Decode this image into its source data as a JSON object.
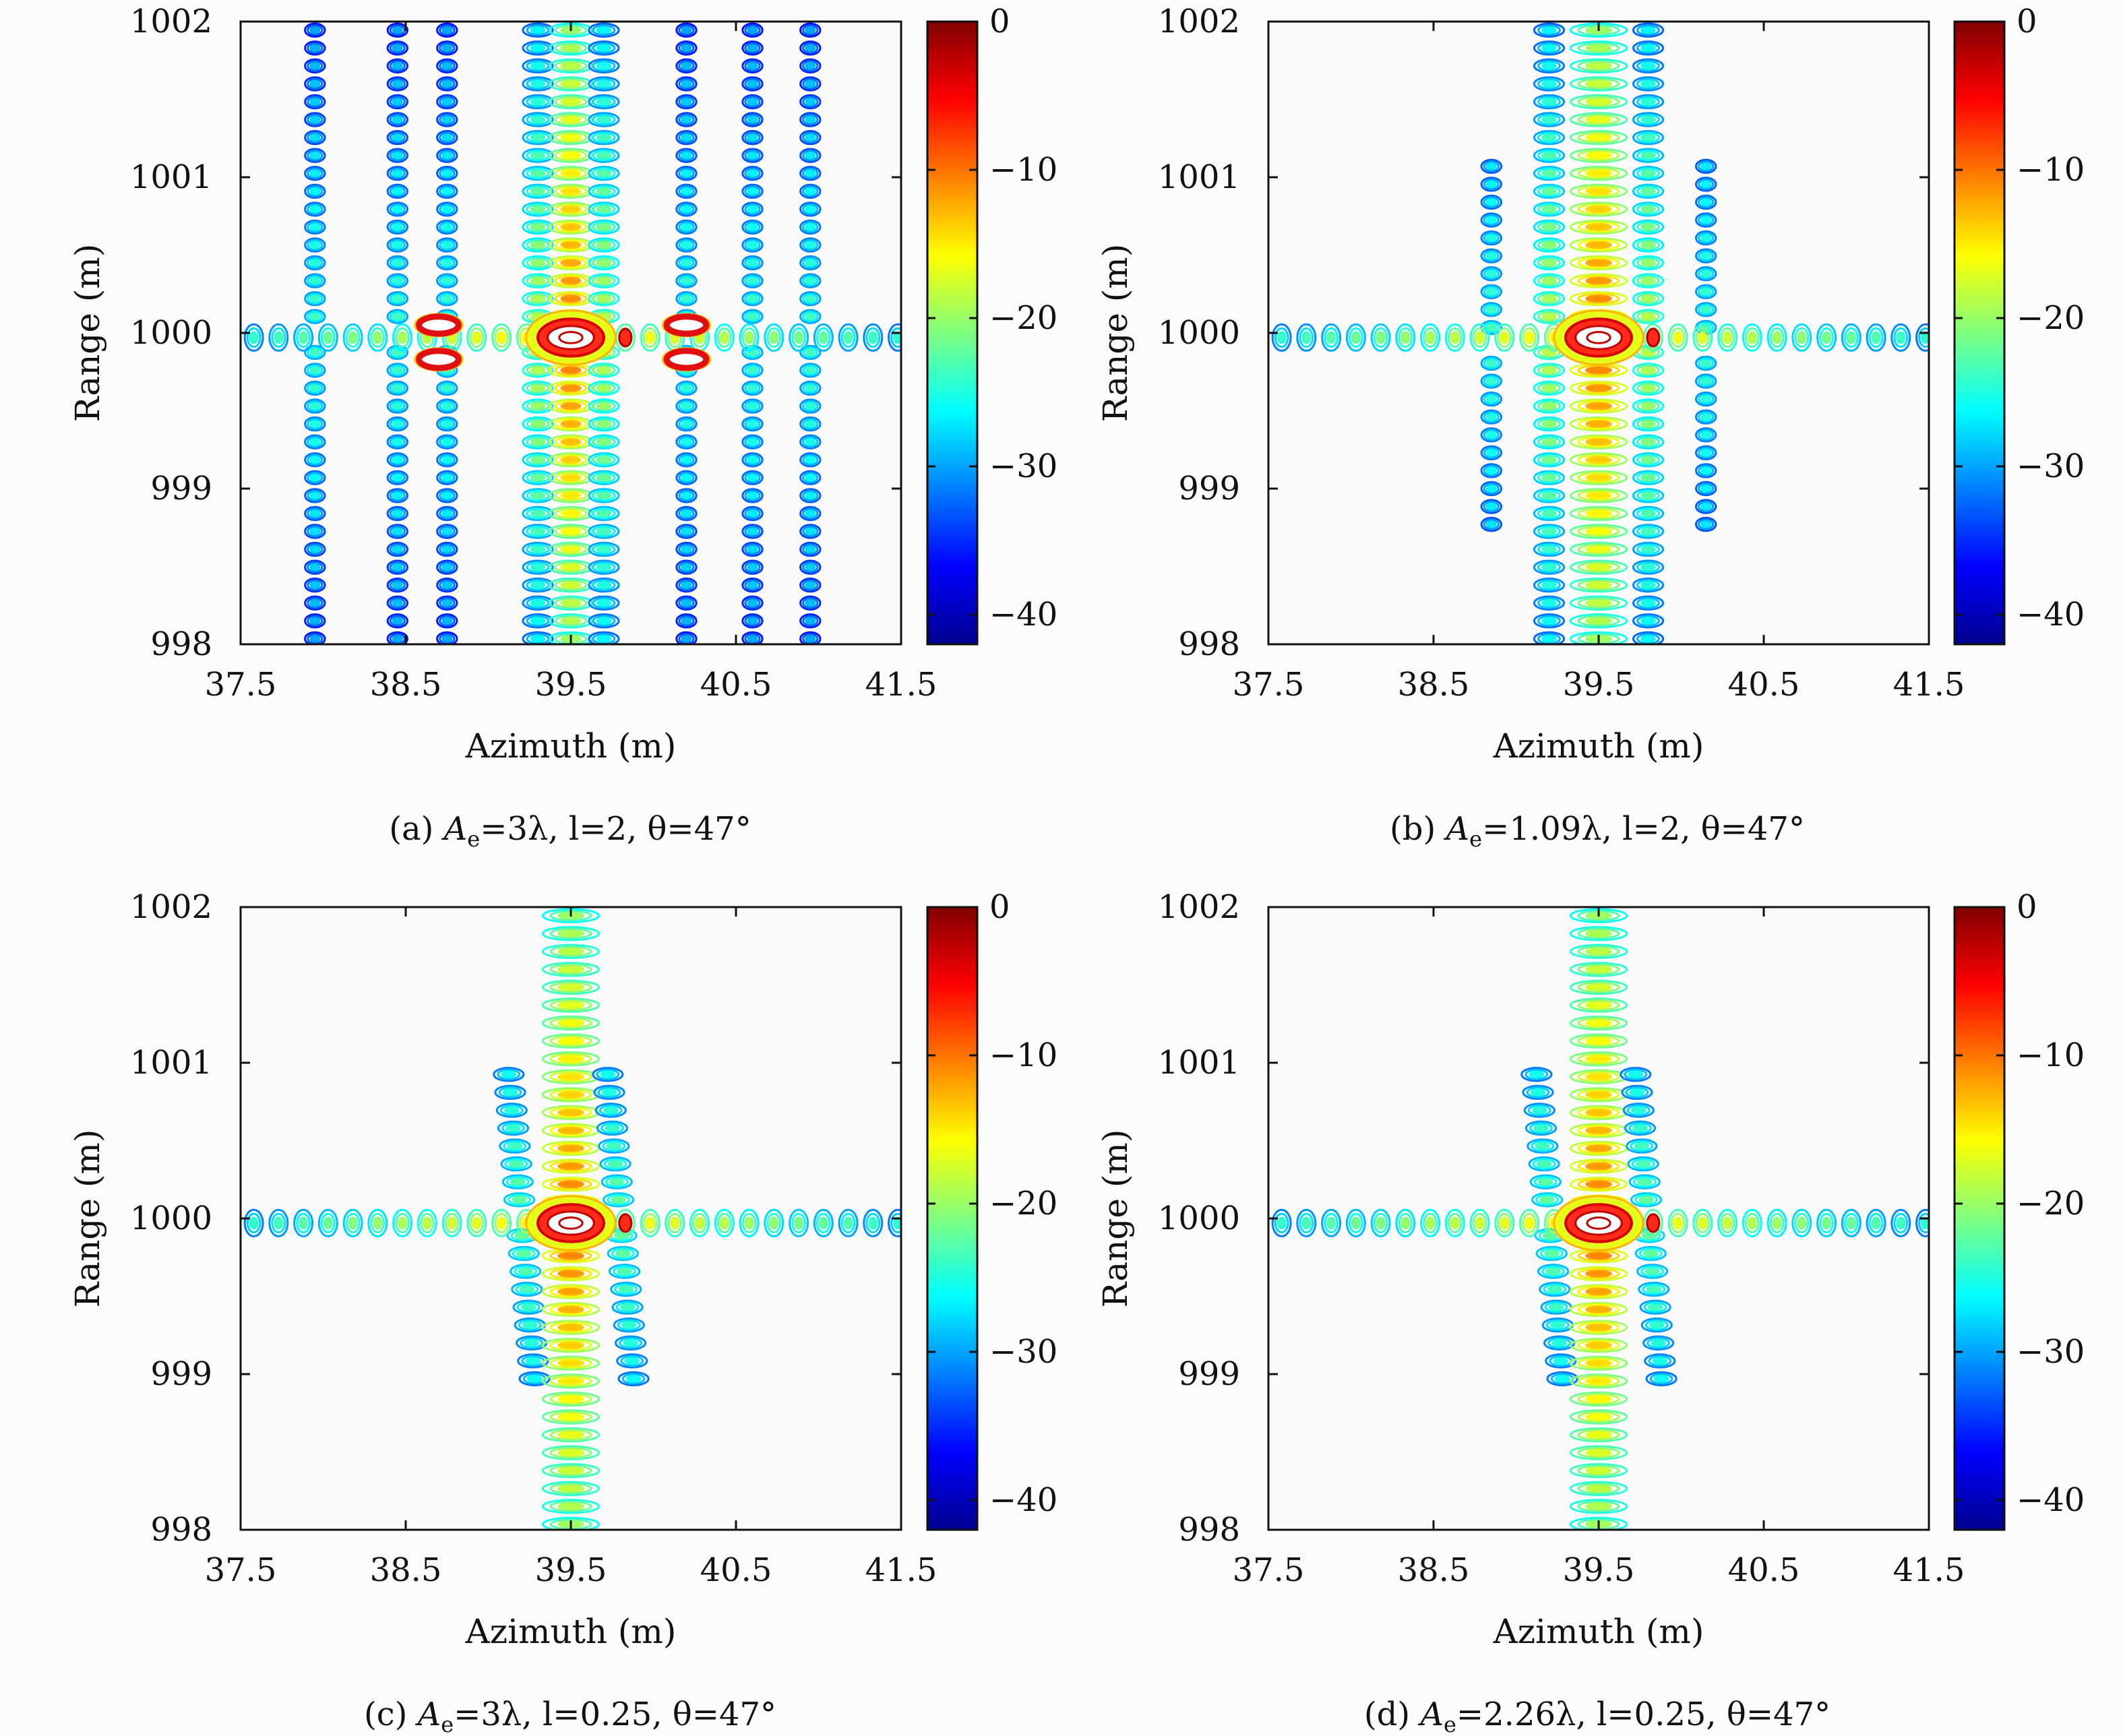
{
  "chart_data": [
    {
      "type": "contour",
      "caption": {
        "prefix": "(a) ",
        "sym": "A",
        "sub": "e",
        "rest": "=3λ, l=2, θ=47°"
      },
      "xlabel": "Azimuth (m)",
      "ylabel": "Range (m)",
      "xlim": [
        37.5,
        41.5
      ],
      "ylim": [
        998,
        1002
      ],
      "xticks": [
        "37.5",
        "38.5",
        "39.5",
        "40.5",
        "41.5"
      ],
      "yticks": [
        "998",
        "999",
        "1000",
        "1001",
        "1002"
      ],
      "colorbar": {
        "label": "",
        "clim": [
          -42,
          0
        ],
        "ticks": [
          "0",
          "−10",
          "−20",
          "−30",
          "−40"
        ]
      },
      "peak": {
        "x": 39.5,
        "y": 999.97,
        "value_db": 0
      },
      "strong_sidelobes_x": [
        38.7,
        40.2
      ],
      "columns_x": [
        37.95,
        38.45,
        38.75,
        39.3,
        39.5,
        39.7,
        40.2,
        40.6,
        40.95
      ]
    },
    {
      "type": "contour",
      "caption": {
        "prefix": "(b) ",
        "sym": "A",
        "sub": "e",
        "rest": "=1.09λ, l=2, θ=47°"
      },
      "xlabel": "Azimuth (m)",
      "ylabel": "Range (m)",
      "xlim": [
        37.5,
        41.5
      ],
      "ylim": [
        998,
        1002
      ],
      "xticks": [
        "37.5",
        "38.5",
        "39.5",
        "40.5",
        "41.5"
      ],
      "yticks": [
        "998",
        "999",
        "1000",
        "1001",
        "1002"
      ],
      "colorbar": {
        "label": "",
        "clim": [
          -42,
          0
        ],
        "ticks": [
          "0",
          "−10",
          "−20",
          "−30",
          "−40"
        ]
      },
      "peak": {
        "x": 39.5,
        "y": 999.97,
        "value_db": 0
      },
      "strong_sidelobes_x": [],
      "columns_x": [
        38.85,
        39.2,
        39.5,
        39.8,
        40.15
      ]
    },
    {
      "type": "contour",
      "caption": {
        "prefix": "(c) ",
        "sym": "A",
        "sub": "e",
        "rest": "=3λ, l=0.25, θ=47°"
      },
      "xlabel": "Azimuth (m)",
      "ylabel": "Range (m)",
      "xlim": [
        37.5,
        41.5
      ],
      "ylim": [
        998,
        1002
      ],
      "xticks": [
        "37.5",
        "38.5",
        "39.5",
        "40.5",
        "41.5"
      ],
      "yticks": [
        "998",
        "999",
        "1000",
        "1001",
        "1002"
      ],
      "colorbar": {
        "label": "",
        "clim": [
          -42,
          0
        ],
        "ticks": [
          "0",
          "−10",
          "−20",
          "−30",
          "−40"
        ]
      },
      "peak": {
        "x": 39.5,
        "y": 999.97,
        "value_db": 0
      },
      "strong_sidelobes_x": [],
      "columns_x": [
        39.2,
        39.5,
        39.8
      ]
    },
    {
      "type": "contour",
      "caption": {
        "prefix": "(d) ",
        "sym": "A",
        "sub": "e",
        "rest": "=2.26λ, l=0.25, θ=47°"
      },
      "xlabel": "Azimuth (m)",
      "ylabel": "Range (m)",
      "xlim": [
        37.5,
        41.5
      ],
      "ylim": [
        998,
        1002
      ],
      "xticks": [
        "37.5",
        "38.5",
        "39.5",
        "40.5",
        "41.5"
      ],
      "yticks": [
        "998",
        "999",
        "1000",
        "1001",
        "1002"
      ],
      "colorbar": {
        "label": "",
        "clim": [
          -42,
          0
        ],
        "ticks": [
          "0",
          "−10",
          "−20",
          "−30",
          "−40"
        ]
      },
      "peak": {
        "x": 39.5,
        "y": 999.97,
        "value_db": 0
      },
      "strong_sidelobes_x": [],
      "columns_x": [
        39.2,
        39.5,
        39.8
      ]
    }
  ],
  "colors": {
    "colormap": [
      "#00008f",
      "#0000ff",
      "#00ffff",
      "#ffff00",
      "#ff0000",
      "#800000"
    ]
  }
}
